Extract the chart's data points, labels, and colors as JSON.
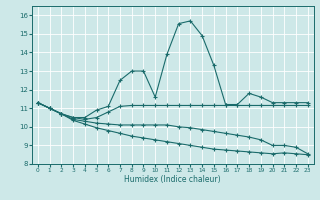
{
  "xlabel": "Humidex (Indice chaleur)",
  "xlim": [
    -0.5,
    23.5
  ],
  "ylim": [
    8,
    16.5
  ],
  "yticks": [
    8,
    9,
    10,
    11,
    12,
    13,
    14,
    15,
    16
  ],
  "xticks": [
    0,
    1,
    2,
    3,
    4,
    5,
    6,
    7,
    8,
    9,
    10,
    11,
    12,
    13,
    14,
    15,
    16,
    17,
    18,
    19,
    20,
    21,
    22,
    23
  ],
  "bg_color": "#cde8e8",
  "grid_color": "#ffffff",
  "line_color": "#1a6b6b",
  "lines": [
    {
      "x": [
        0,
        1,
        2,
        3,
        4,
        5,
        6,
        7,
        8,
        9,
        10,
        11,
        12,
        13,
        14,
        15,
        16,
        17,
        18,
        19,
        20,
        21,
        22,
        23
      ],
      "y": [
        11.3,
        11.0,
        10.7,
        10.5,
        10.5,
        10.9,
        11.1,
        12.5,
        13.0,
        13.0,
        11.6,
        13.9,
        15.55,
        15.7,
        14.9,
        13.3,
        11.2,
        11.2,
        11.8,
        11.6,
        11.3,
        11.3,
        11.3,
        11.3
      ]
    },
    {
      "x": [
        0,
        1,
        2,
        3,
        4,
        5,
        6,
        7,
        8,
        9,
        10,
        11,
        12,
        13,
        14,
        15,
        16,
        17,
        18,
        19,
        20,
        21,
        22,
        23
      ],
      "y": [
        11.3,
        11.0,
        10.7,
        10.5,
        10.4,
        10.5,
        10.8,
        11.1,
        11.15,
        11.15,
        11.15,
        11.15,
        11.15,
        11.15,
        11.15,
        11.15,
        11.15,
        11.15,
        11.15,
        11.15,
        11.15,
        11.15,
        11.15,
        11.15
      ]
    },
    {
      "x": [
        0,
        1,
        2,
        3,
        4,
        5,
        6,
        7,
        8,
        9,
        10,
        11,
        12,
        13,
        14,
        15,
        16,
        17,
        18,
        19,
        20,
        21,
        22,
        23
      ],
      "y": [
        11.3,
        11.0,
        10.7,
        10.4,
        10.3,
        10.2,
        10.15,
        10.1,
        10.1,
        10.1,
        10.1,
        10.1,
        10.0,
        9.95,
        9.85,
        9.75,
        9.65,
        9.55,
        9.45,
        9.3,
        9.0,
        9.0,
        8.9,
        8.55
      ]
    },
    {
      "x": [
        0,
        1,
        2,
        3,
        4,
        5,
        6,
        7,
        8,
        9,
        10,
        11,
        12,
        13,
        14,
        15,
        16,
        17,
        18,
        19,
        20,
        21,
        22,
        23
      ],
      "y": [
        11.3,
        11.0,
        10.7,
        10.35,
        10.15,
        9.95,
        9.8,
        9.65,
        9.5,
        9.4,
        9.3,
        9.2,
        9.1,
        9.0,
        8.9,
        8.8,
        8.75,
        8.7,
        8.65,
        8.6,
        8.55,
        8.6,
        8.55,
        8.5
      ]
    }
  ]
}
